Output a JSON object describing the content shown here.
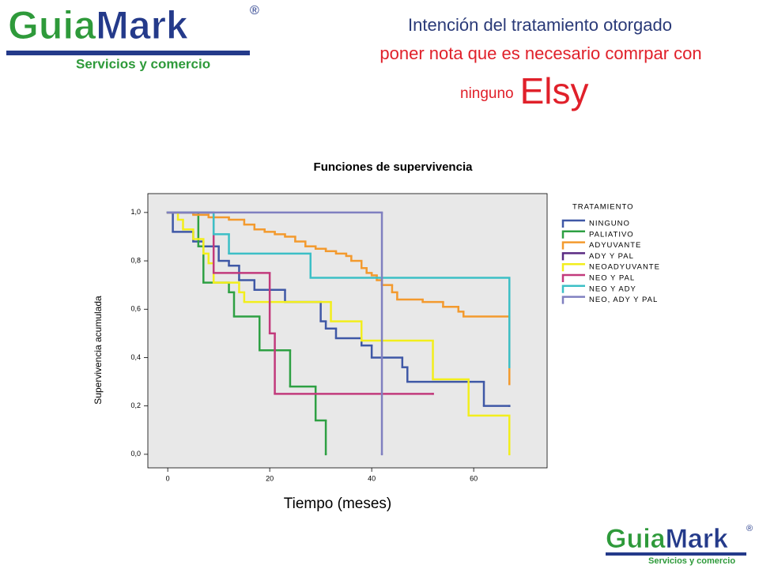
{
  "logo": {
    "part1": "Guia",
    "part2": "Mark",
    "mark": "®",
    "tagline": "Servicios y comercio"
  },
  "heading": {
    "line1": "Intención del tratamiento otorgado",
    "line2": "poner nota que es necesario comrpar con",
    "line3": "ninguno",
    "name": "Elsy"
  },
  "chart_data": {
    "type": "step",
    "title": "Funciones de supervivencia",
    "x_label": "Tiempo (meses)",
    "y_label": "Supervivencia acumulada",
    "legend_title": "TRATAMIENTO",
    "xlim": [
      -3.9,
      74.4
    ],
    "ylim": [
      -0.056,
      1.078
    ],
    "xticks": [
      0,
      20,
      40,
      60
    ],
    "yticks": [
      {
        "value": 0,
        "label": "0,0"
      },
      {
        "value": 0.2,
        "label": "0,2"
      },
      {
        "value": 0.4,
        "label": "0,4"
      },
      {
        "value": 0.6,
        "label": "0,6"
      },
      {
        "value": 0.8,
        "label": "0,8"
      },
      {
        "value": 1,
        "label": "1,0"
      }
    ],
    "series": [
      {
        "name": "NINGUNO",
        "color": "#3f58a6",
        "x": [
          0,
          1,
          5,
          7,
          10,
          12,
          14,
          17,
          23,
          30,
          31,
          33,
          38,
          40,
          46,
          47,
          62,
          67
        ],
        "values": [
          1,
          0.92,
          0.88,
          0.86,
          0.8,
          0.78,
          0.72,
          0.68,
          0.63,
          0.55,
          0.52,
          0.48,
          0.45,
          0.4,
          0.36,
          0.3,
          0.2,
          0.2
        ]
      },
      {
        "name": "PALIATIVO",
        "color": "#2ea043",
        "x": [
          0,
          6,
          7,
          12,
          13,
          18,
          24,
          29,
          31
        ],
        "values": [
          1,
          0.86,
          0.71,
          0.67,
          0.57,
          0.43,
          0.28,
          0.14,
          0
        ]
      },
      {
        "name": "ADYUVANTE",
        "color": "#f39a2e",
        "x": [
          0,
          5,
          8,
          12,
          15,
          17,
          19,
          21,
          23,
          25,
          27,
          29,
          31,
          33,
          35,
          36,
          38,
          39,
          40,
          41,
          42,
          44,
          45,
          50,
          54,
          57,
          58,
          67
        ],
        "values": [
          1,
          0.99,
          0.98,
          0.97,
          0.95,
          0.93,
          0.92,
          0.91,
          0.9,
          0.88,
          0.86,
          0.85,
          0.84,
          0.83,
          0.82,
          0.8,
          0.77,
          0.75,
          0.74,
          0.72,
          0.7,
          0.67,
          0.64,
          0.63,
          0.61,
          0.59,
          0.57,
          0.29
        ]
      },
      {
        "name": "ADY Y PAL",
        "color": "#5a2a82",
        "x": [
          0,
          8
        ],
        "values": [
          1,
          1
        ]
      },
      {
        "name": "NEOADYUVANTE",
        "color": "#f2ee1c",
        "x": [
          0,
          2,
          3,
          5,
          7,
          8,
          9,
          14,
          15,
          32,
          38,
          52,
          59,
          67
        ],
        "values": [
          1,
          0.97,
          0.93,
          0.89,
          0.83,
          0.79,
          0.71,
          0.67,
          0.63,
          0.55,
          0.47,
          0.31,
          0.16,
          0
        ]
      },
      {
        "name": "NEO Y PAL",
        "color": "#c23a7c",
        "x": [
          0,
          9,
          20,
          21,
          52
        ],
        "values": [
          1,
          0.75,
          0.5,
          0.25,
          0.25
        ]
      },
      {
        "name": "NEO Y ADY",
        "color": "#3cbfc6",
        "x": [
          0,
          9,
          12,
          28,
          67
        ],
        "values": [
          1,
          0.91,
          0.83,
          0.73,
          0.36
        ]
      },
      {
        "name": "NEO, ADY Y PAL",
        "color": "#8080c0",
        "x": [
          0,
          42
        ],
        "values": [
          1,
          0
        ]
      }
    ]
  }
}
